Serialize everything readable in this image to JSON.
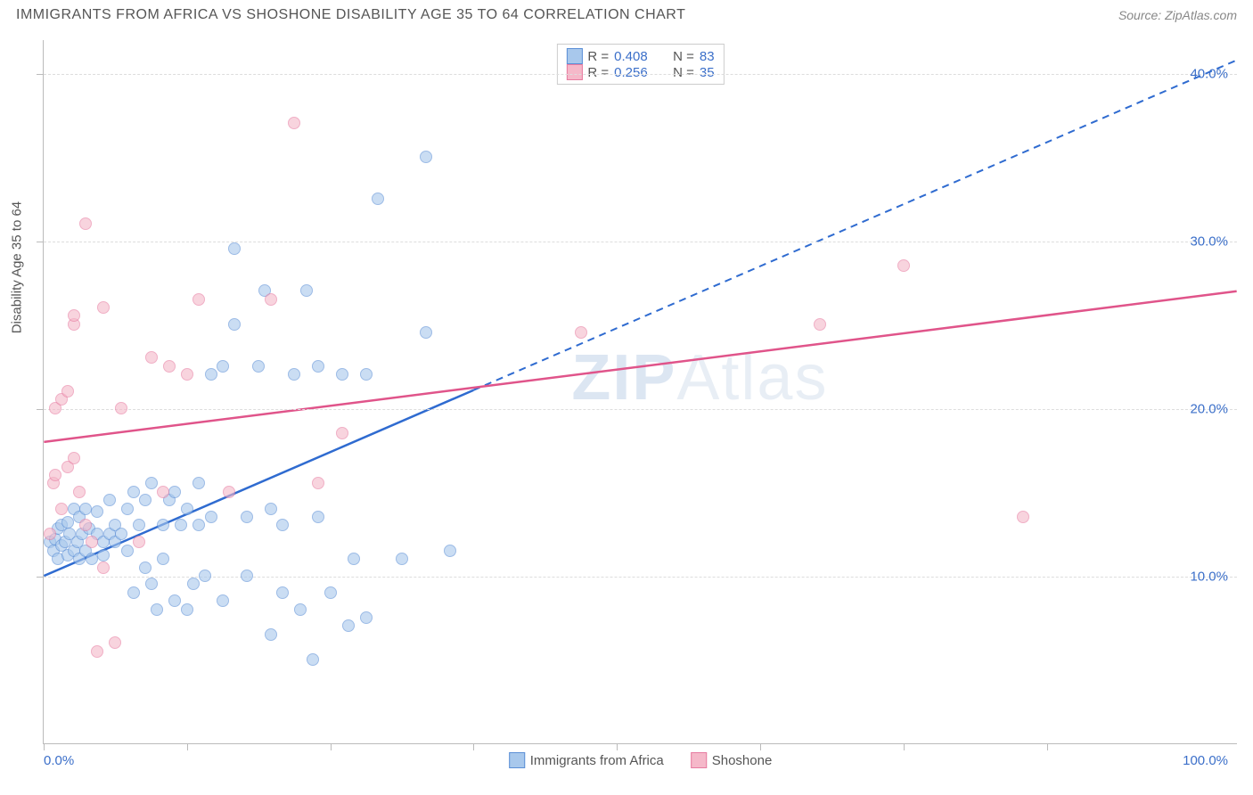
{
  "header": {
    "title": "IMMIGRANTS FROM AFRICA VS SHOSHONE DISABILITY AGE 35 TO 64 CORRELATION CHART",
    "source_label": "Source: ",
    "source_name": "ZipAtlas.com"
  },
  "watermark": {
    "zip": "ZIP",
    "atlas": "Atlas"
  },
  "chart": {
    "type": "scatter",
    "yaxis_title": "Disability Age 35 to 64",
    "xlim": [
      0,
      100
    ],
    "ylim": [
      0,
      42
    ],
    "x_tick_positions": [
      0,
      12,
      24,
      36,
      48,
      60,
      72,
      84
    ],
    "y_tick_positions": [
      10,
      20,
      30,
      40
    ],
    "y_tick_labels": [
      "10.0%",
      "20.0%",
      "30.0%",
      "40.0%"
    ],
    "x_label_min": "0.0%",
    "x_label_max": "100.0%",
    "axis_label_color": "#3b6fc9",
    "grid_color": "#dddddd",
    "background_color": "#ffffff",
    "marker_radius": 7,
    "series": [
      {
        "name": "Immigrants from Africa",
        "fill": "#a8c8ec",
        "stroke": "#5b8fd6",
        "fill_opacity": 0.6,
        "trend": {
          "x1": 0,
          "y1": 10.0,
          "x2": 100,
          "y2": 40.8,
          "x_solid_until": 36,
          "color": "#2f6bd0",
          "width": 2.5
        },
        "points": [
          [
            0.5,
            12.0
          ],
          [
            0.8,
            11.5
          ],
          [
            1.0,
            12.2
          ],
          [
            1.2,
            11.0
          ],
          [
            1.2,
            12.8
          ],
          [
            1.5,
            11.8
          ],
          [
            1.5,
            13.0
          ],
          [
            1.8,
            12.0
          ],
          [
            2.0,
            11.2
          ],
          [
            2.0,
            13.2
          ],
          [
            2.2,
            12.5
          ],
          [
            2.5,
            11.5
          ],
          [
            2.5,
            14.0
          ],
          [
            2.8,
            12.0
          ],
          [
            3.0,
            11.0
          ],
          [
            3.0,
            13.5
          ],
          [
            3.2,
            12.5
          ],
          [
            3.5,
            11.5
          ],
          [
            3.5,
            14.0
          ],
          [
            3.8,
            12.8
          ],
          [
            4.0,
            11.0
          ],
          [
            4.5,
            12.5
          ],
          [
            4.5,
            13.8
          ],
          [
            5.0,
            12.0
          ],
          [
            5.0,
            11.2
          ],
          [
            5.5,
            12.5
          ],
          [
            5.5,
            14.5
          ],
          [
            6.0,
            13.0
          ],
          [
            6.0,
            12.0
          ],
          [
            6.5,
            12.5
          ],
          [
            7.0,
            14.0
          ],
          [
            7.0,
            11.5
          ],
          [
            7.5,
            9.0
          ],
          [
            7.5,
            15.0
          ],
          [
            8.0,
            13.0
          ],
          [
            8.5,
            10.5
          ],
          [
            8.5,
            14.5
          ],
          [
            9.0,
            9.5
          ],
          [
            9.0,
            15.5
          ],
          [
            9.5,
            8.0
          ],
          [
            10.0,
            13.0
          ],
          [
            10.0,
            11.0
          ],
          [
            10.5,
            14.5
          ],
          [
            11.0,
            8.5
          ],
          [
            11.0,
            15.0
          ],
          [
            11.5,
            13.0
          ],
          [
            12.0,
            14.0
          ],
          [
            12.0,
            8.0
          ],
          [
            12.5,
            9.5
          ],
          [
            13.0,
            15.5
          ],
          [
            13.0,
            13.0
          ],
          [
            13.5,
            10.0
          ],
          [
            14.0,
            22.0
          ],
          [
            14.0,
            13.5
          ],
          [
            15.0,
            22.5
          ],
          [
            15.0,
            8.5
          ],
          [
            16.0,
            25.0
          ],
          [
            16.0,
            29.5
          ],
          [
            17.0,
            13.5
          ],
          [
            17.0,
            10.0
          ],
          [
            18.0,
            22.5
          ],
          [
            18.5,
            27.0
          ],
          [
            19.0,
            14.0
          ],
          [
            19.0,
            6.5
          ],
          [
            20.0,
            9.0
          ],
          [
            20.0,
            13.0
          ],
          [
            21.0,
            22.0
          ],
          [
            21.5,
            8.0
          ],
          [
            22.0,
            27.0
          ],
          [
            22.5,
            5.0
          ],
          [
            23.0,
            13.5
          ],
          [
            23.0,
            22.5
          ],
          [
            24.0,
            9.0
          ],
          [
            25.0,
            22.0
          ],
          [
            25.5,
            7.0
          ],
          [
            26.0,
            11.0
          ],
          [
            27.0,
            22.0
          ],
          [
            27.0,
            7.5
          ],
          [
            28.0,
            32.5
          ],
          [
            30.0,
            11.0
          ],
          [
            32.0,
            35.0
          ],
          [
            32.0,
            24.5
          ],
          [
            34.0,
            11.5
          ]
        ]
      },
      {
        "name": "Shoshone",
        "fill": "#f5b8c9",
        "stroke": "#e77ba0",
        "fill_opacity": 0.6,
        "trend": {
          "x1": 0,
          "y1": 18.0,
          "x2": 100,
          "y2": 27.0,
          "x_solid_until": 100,
          "color": "#e0548a",
          "width": 2.5
        },
        "points": [
          [
            0.5,
            12.5
          ],
          [
            0.8,
            15.5
          ],
          [
            1.0,
            16.0
          ],
          [
            1.0,
            20.0
          ],
          [
            1.5,
            14.0
          ],
          [
            1.5,
            20.5
          ],
          [
            2.0,
            16.5
          ],
          [
            2.0,
            21.0
          ],
          [
            2.5,
            17.0
          ],
          [
            2.5,
            25.0
          ],
          [
            2.5,
            25.5
          ],
          [
            3.0,
            15.0
          ],
          [
            3.5,
            13.0
          ],
          [
            3.5,
            31.0
          ],
          [
            4.0,
            12.0
          ],
          [
            4.5,
            5.5
          ],
          [
            5.0,
            26.0
          ],
          [
            5.0,
            10.5
          ],
          [
            6.0,
            6.0
          ],
          [
            6.5,
            20.0
          ],
          [
            8.0,
            12.0
          ],
          [
            9.0,
            23.0
          ],
          [
            10.0,
            15.0
          ],
          [
            10.5,
            22.5
          ],
          [
            12.0,
            22.0
          ],
          [
            13.0,
            26.5
          ],
          [
            15.5,
            15.0
          ],
          [
            19.0,
            26.5
          ],
          [
            21.0,
            37.0
          ],
          [
            23.0,
            15.5
          ],
          [
            25.0,
            18.5
          ],
          [
            45.0,
            24.5
          ],
          [
            65.0,
            25.0
          ],
          [
            72.0,
            28.5
          ],
          [
            82.0,
            13.5
          ]
        ]
      }
    ],
    "legend_top": [
      {
        "swatch_fill": "#a8c8ec",
        "swatch_stroke": "#5b8fd6",
        "r_label": "R =",
        "r_value": "0.408",
        "n_label": "N =",
        "n_value": "83"
      },
      {
        "swatch_fill": "#f5b8c9",
        "swatch_stroke": "#e77ba0",
        "r_label": "R =",
        "r_value": "0.256",
        "n_label": "N =",
        "n_value": "35"
      }
    ],
    "legend_bottom": [
      {
        "swatch_fill": "#a8c8ec",
        "swatch_stroke": "#5b8fd6",
        "label": "Immigrants from Africa"
      },
      {
        "swatch_fill": "#f5b8c9",
        "swatch_stroke": "#e77ba0",
        "label": "Shoshone"
      }
    ]
  }
}
